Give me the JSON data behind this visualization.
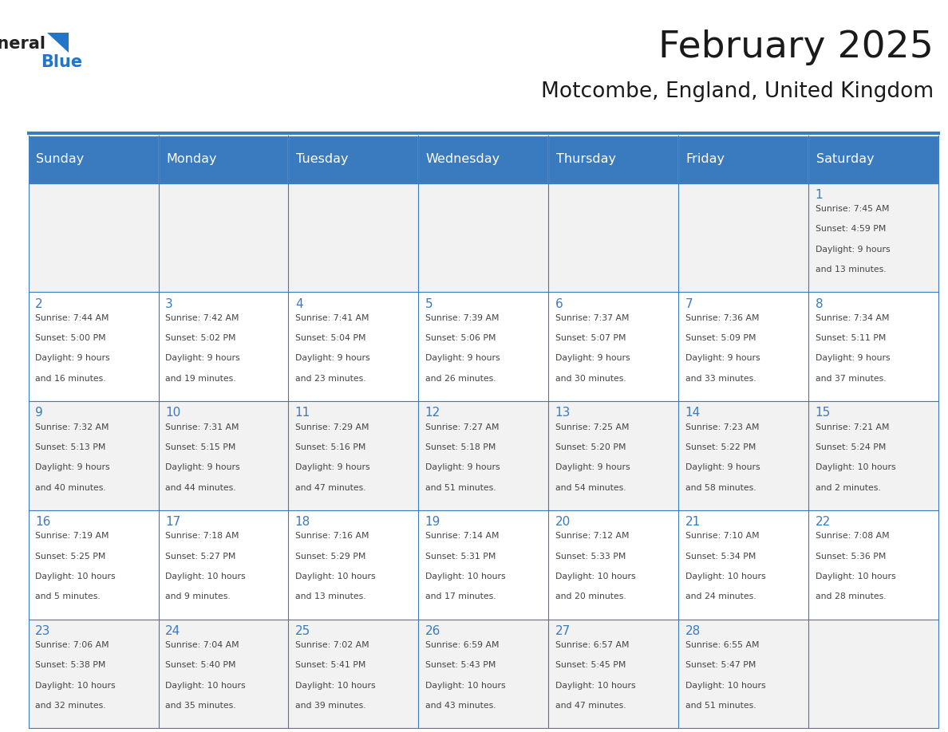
{
  "title": "February 2025",
  "subtitle": "Motcombe, England, United Kingdom",
  "days_of_week": [
    "Sunday",
    "Monday",
    "Tuesday",
    "Wednesday",
    "Thursday",
    "Friday",
    "Saturday"
  ],
  "header_bg": "#3a7abf",
  "header_text": "#ffffff",
  "cell_bg_light": "#f2f2f2",
  "cell_bg_white": "#ffffff",
  "border_color": "#3a7abf",
  "text_color": "#444444",
  "title_color": "#1a1a1a",
  "calendar_data": [
    [
      null,
      null,
      null,
      null,
      null,
      null,
      {
        "day": 1,
        "sunrise": "7:45 AM",
        "sunset": "4:59 PM",
        "daylight": "9 hours\nand 13 minutes."
      }
    ],
    [
      {
        "day": 2,
        "sunrise": "7:44 AM",
        "sunset": "5:00 PM",
        "daylight": "9 hours\nand 16 minutes."
      },
      {
        "day": 3,
        "sunrise": "7:42 AM",
        "sunset": "5:02 PM",
        "daylight": "9 hours\nand 19 minutes."
      },
      {
        "day": 4,
        "sunrise": "7:41 AM",
        "sunset": "5:04 PM",
        "daylight": "9 hours\nand 23 minutes."
      },
      {
        "day": 5,
        "sunrise": "7:39 AM",
        "sunset": "5:06 PM",
        "daylight": "9 hours\nand 26 minutes."
      },
      {
        "day": 6,
        "sunrise": "7:37 AM",
        "sunset": "5:07 PM",
        "daylight": "9 hours\nand 30 minutes."
      },
      {
        "day": 7,
        "sunrise": "7:36 AM",
        "sunset": "5:09 PM",
        "daylight": "9 hours\nand 33 minutes."
      },
      {
        "day": 8,
        "sunrise": "7:34 AM",
        "sunset": "5:11 PM",
        "daylight": "9 hours\nand 37 minutes."
      }
    ],
    [
      {
        "day": 9,
        "sunrise": "7:32 AM",
        "sunset": "5:13 PM",
        "daylight": "9 hours\nand 40 minutes."
      },
      {
        "day": 10,
        "sunrise": "7:31 AM",
        "sunset": "5:15 PM",
        "daylight": "9 hours\nand 44 minutes."
      },
      {
        "day": 11,
        "sunrise": "7:29 AM",
        "sunset": "5:16 PM",
        "daylight": "9 hours\nand 47 minutes."
      },
      {
        "day": 12,
        "sunrise": "7:27 AM",
        "sunset": "5:18 PM",
        "daylight": "9 hours\nand 51 minutes."
      },
      {
        "day": 13,
        "sunrise": "7:25 AM",
        "sunset": "5:20 PM",
        "daylight": "9 hours\nand 54 minutes."
      },
      {
        "day": 14,
        "sunrise": "7:23 AM",
        "sunset": "5:22 PM",
        "daylight": "9 hours\nand 58 minutes."
      },
      {
        "day": 15,
        "sunrise": "7:21 AM",
        "sunset": "5:24 PM",
        "daylight": "10 hours\nand 2 minutes."
      }
    ],
    [
      {
        "day": 16,
        "sunrise": "7:19 AM",
        "sunset": "5:25 PM",
        "daylight": "10 hours\nand 5 minutes."
      },
      {
        "day": 17,
        "sunrise": "7:18 AM",
        "sunset": "5:27 PM",
        "daylight": "10 hours\nand 9 minutes."
      },
      {
        "day": 18,
        "sunrise": "7:16 AM",
        "sunset": "5:29 PM",
        "daylight": "10 hours\nand 13 minutes."
      },
      {
        "day": 19,
        "sunrise": "7:14 AM",
        "sunset": "5:31 PM",
        "daylight": "10 hours\nand 17 minutes."
      },
      {
        "day": 20,
        "sunrise": "7:12 AM",
        "sunset": "5:33 PM",
        "daylight": "10 hours\nand 20 minutes."
      },
      {
        "day": 21,
        "sunrise": "7:10 AM",
        "sunset": "5:34 PM",
        "daylight": "10 hours\nand 24 minutes."
      },
      {
        "day": 22,
        "sunrise": "7:08 AM",
        "sunset": "5:36 PM",
        "daylight": "10 hours\nand 28 minutes."
      }
    ],
    [
      {
        "day": 23,
        "sunrise": "7:06 AM",
        "sunset": "5:38 PM",
        "daylight": "10 hours\nand 32 minutes."
      },
      {
        "day": 24,
        "sunrise": "7:04 AM",
        "sunset": "5:40 PM",
        "daylight": "10 hours\nand 35 minutes."
      },
      {
        "day": 25,
        "sunrise": "7:02 AM",
        "sunset": "5:41 PM",
        "daylight": "10 hours\nand 39 minutes."
      },
      {
        "day": 26,
        "sunrise": "6:59 AM",
        "sunset": "5:43 PM",
        "daylight": "10 hours\nand 43 minutes."
      },
      {
        "day": 27,
        "sunrise": "6:57 AM",
        "sunset": "5:45 PM",
        "daylight": "10 hours\nand 47 minutes."
      },
      {
        "day": 28,
        "sunrise": "6:55 AM",
        "sunset": "5:47 PM",
        "daylight": "10 hours\nand 51 minutes."
      },
      null
    ]
  ]
}
